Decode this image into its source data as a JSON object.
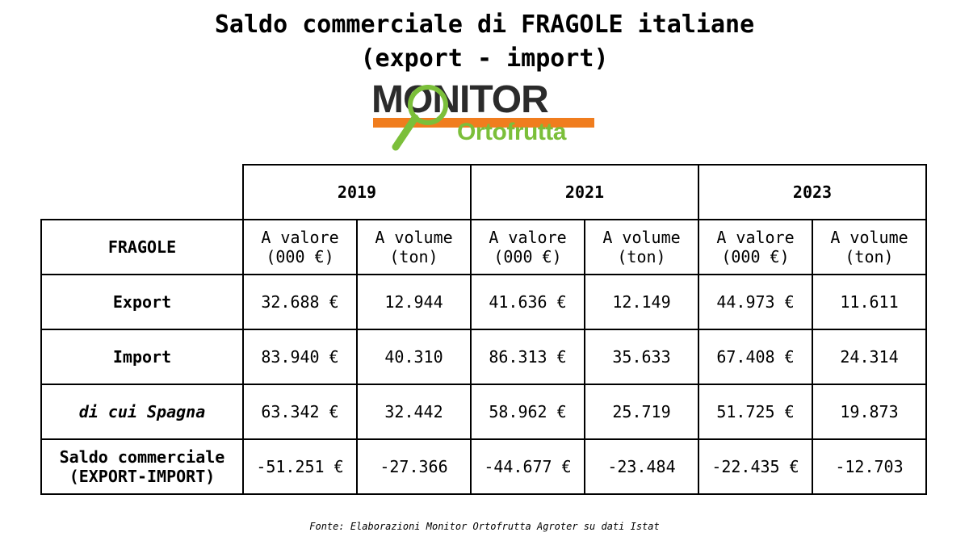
{
  "title": {
    "line1": "Saldo commerciale di FRAGOLE italiane",
    "line2": "(export - import)"
  },
  "logo": {
    "text_main": "MONITOR",
    "text_sub": "Ortofrutta",
    "colors": {
      "dark": "#2b2b2b",
      "orange": "#f07d1e",
      "green": "#7bbf3a"
    }
  },
  "table": {
    "years": [
      "2019",
      "2021",
      "2023"
    ],
    "row_header": "FRAGOLE",
    "col_value_line1": "A valore",
    "col_value_line2": "(000 €)",
    "col_volume_line1": "A volume",
    "col_volume_line2": "(ton)",
    "rows": [
      {
        "label": "Export",
        "cells": [
          "32.688 €",
          "12.944",
          "41.636 €",
          "12.149",
          "44.973 €",
          "11.611"
        ]
      },
      {
        "label": "Import",
        "cells": [
          "83.940 €",
          "40.310",
          "86.313 €",
          "35.633",
          "67.408 €",
          "24.314"
        ]
      },
      {
        "label": "di cui Spagna",
        "cells": [
          "63.342 €",
          "32.442",
          "58.962 €",
          "25.719",
          "51.725 €",
          "19.873"
        ]
      },
      {
        "label_line1": "Saldo commerciale",
        "label_line2": "(EXPORT-IMPORT)",
        "cells": [
          "-51.251 €",
          "-27.366",
          "-44.677 €",
          "-23.484",
          "-22.435 €",
          "-12.703"
        ]
      }
    ]
  },
  "source": "Fonte: Elaborazioni Monitor Ortofrutta Agroter su dati Istat"
}
